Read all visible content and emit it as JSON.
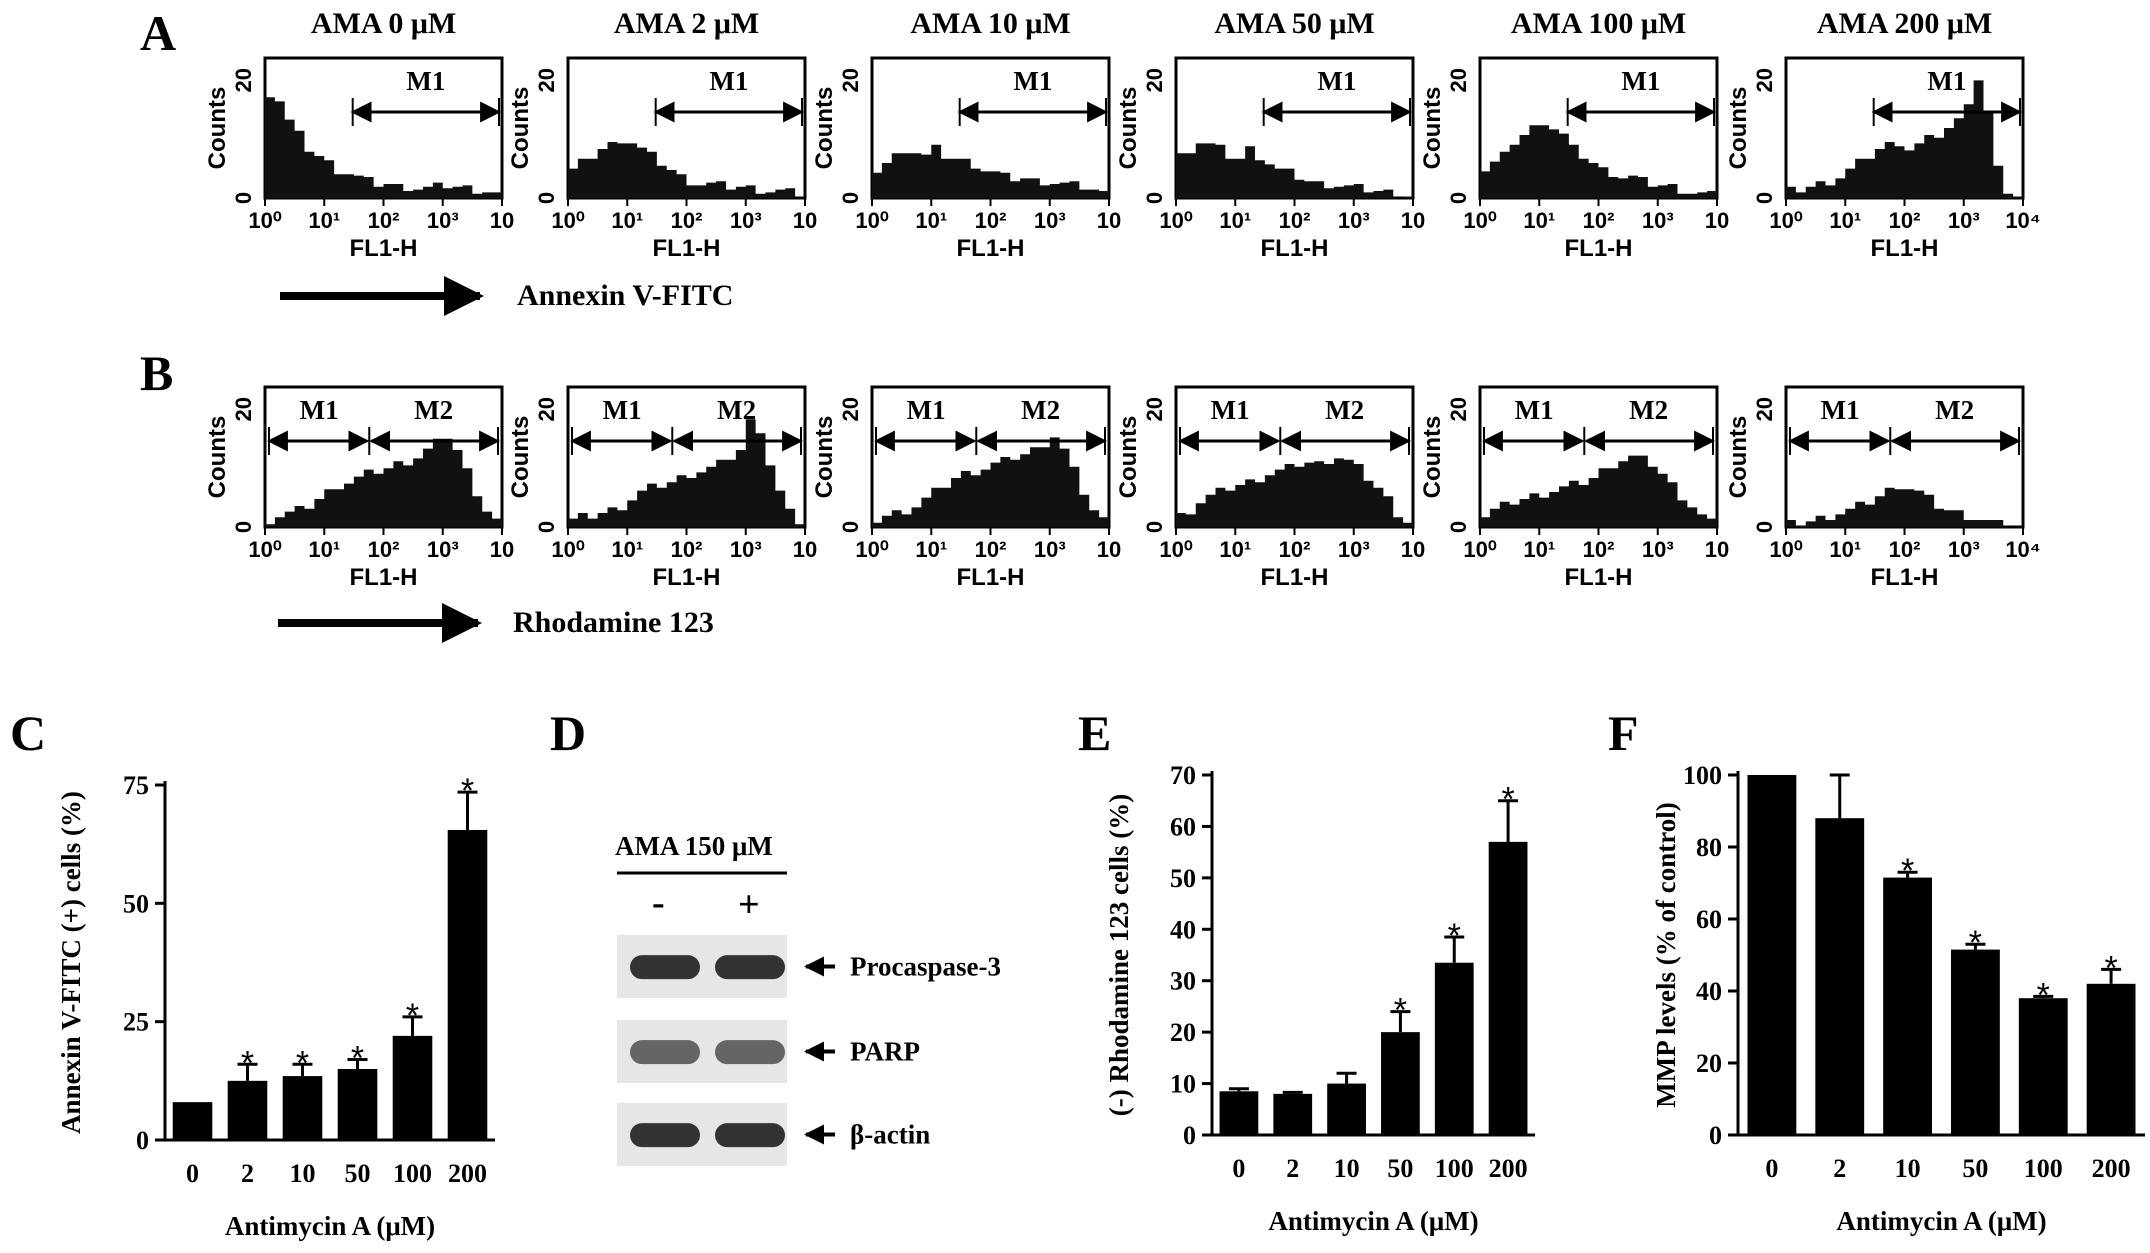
{
  "panels": {
    "A": "A",
    "B": "B",
    "C": "C",
    "D": "D",
    "E": "E",
    "F": "F"
  },
  "conditions": [
    "AMA 0 μM",
    "AMA 2 μM",
    "AMA 10 μM",
    "AMA 50 μM",
    "AMA 100 μM",
    "AMA 200 μM"
  ],
  "flow": {
    "ylabel": "Counts",
    "xlabel": "FL1-H",
    "ytick_top": "20",
    "ytick_bottom": "0",
    "x_ticks": [
      "10⁰",
      "10¹",
      "10²",
      "10³",
      "10"
    ],
    "x_ticks_last": [
      "10⁰",
      "10¹",
      "10²",
      "10³",
      "10⁴"
    ],
    "row_A": {
      "gates": [
        "M1"
      ],
      "arrow_label": "Annexin V-FITC"
    },
    "row_B": {
      "gates": [
        "M1",
        "M2"
      ],
      "arrow_label": "Rhodamine 123"
    }
  },
  "chart_data": [
    {
      "panel": "C",
      "type": "bar",
      "categories": [
        "0",
        "2",
        "10",
        "50",
        "100",
        "200"
      ],
      "values": [
        8,
        12.5,
        13.5,
        15,
        22,
        65.5
      ],
      "errors": [
        0,
        3.5,
        2.5,
        2,
        4,
        8
      ],
      "significant": [
        false,
        true,
        true,
        true,
        true,
        true
      ],
      "ylabel": "Annexin V-FITC (+) cells (%)",
      "xlabel": "Antimycin A (μM)",
      "ylim": [
        0,
        75
      ],
      "yticks": [
        "0",
        "25",
        "50",
        "75"
      ]
    },
    {
      "panel": "E",
      "type": "bar",
      "categories": [
        "0",
        "2",
        "10",
        "50",
        "100",
        "200"
      ],
      "values": [
        8.5,
        8,
        10,
        20,
        33.5,
        57
      ],
      "errors": [
        0.5,
        0.3,
        2,
        4,
        5,
        8
      ],
      "significant": [
        false,
        false,
        false,
        true,
        true,
        true
      ],
      "ylabel": "(-) Rhodamine 123 cells (%)",
      "xlabel": "Antimycin A (μM)",
      "ylim": [
        0,
        70
      ],
      "yticks": [
        "0",
        "10",
        "20",
        "30",
        "40",
        "50",
        "60",
        "70"
      ]
    },
    {
      "panel": "F",
      "type": "bar",
      "categories": [
        "0",
        "2",
        "10",
        "50",
        "100",
        "200"
      ],
      "values": [
        100,
        88,
        71.5,
        51.5,
        38,
        42
      ],
      "errors": [
        0,
        12,
        1.5,
        1.5,
        0.5,
        4
      ],
      "significant": [
        false,
        false,
        true,
        true,
        true,
        true
      ],
      "ylabel": "MMP levels (% of control)",
      "xlabel": "Antimycin A (μM)",
      "ylim": [
        0,
        100
      ],
      "yticks": [
        "0",
        "20",
        "40",
        "60",
        "80",
        "100"
      ]
    }
  ],
  "blot": {
    "treatment": "AMA 150 μM",
    "lanes": [
      "-",
      "+"
    ],
    "bands": [
      "Procaspase-3",
      "PARP",
      "β-actin"
    ]
  },
  "star_symbol": "*"
}
